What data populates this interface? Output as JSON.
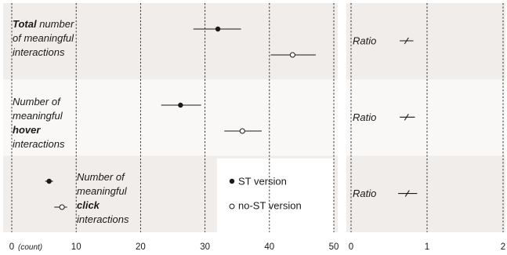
{
  "chart_data": [
    {
      "type": "scatter",
      "subtype": "dot-with-confidence-interval",
      "xlabel": "(count)",
      "xlim": [
        0,
        50
      ],
      "xticks": [
        0,
        10,
        20,
        30,
        40,
        50
      ],
      "grid": true,
      "legend": {
        "placement": "bottom-right",
        "entries": [
          {
            "name": "ST version",
            "marker": "filled-circle"
          },
          {
            "name": "no-ST version",
            "marker": "open-circle"
          }
        ]
      },
      "rows": [
        {
          "label_parts": [
            {
              "text": "Total",
              "bold": true
            },
            {
              "text": " number",
              "bold": false
            },
            {
              "text": "of meaningful",
              "bold": false,
              "newline": true
            },
            {
              "text": "interactions",
              "bold": false,
              "newline": true
            }
          ],
          "st": {
            "mean": 32,
            "ci": [
              28.2,
              35.6
            ]
          },
          "nost": {
            "mean": 43.6,
            "ci": [
              40.2,
              47.2
            ]
          }
        },
        {
          "label_parts": [
            {
              "text": "Number of",
              "bold": false
            },
            {
              "text": "meaningful",
              "bold": false,
              "newline": true
            },
            {
              "text": "hover",
              "bold": true,
              "newline": true
            },
            {
              "text": "interactions",
              "bold": false,
              "newline": true
            }
          ],
          "st": {
            "mean": 26.2,
            "ci": [
              23.2,
              29.4
            ]
          },
          "nost": {
            "mean": 35.8,
            "ci": [
              33.0,
              38.8
            ]
          }
        },
        {
          "label_parts": [
            {
              "text": "Number of",
              "bold": false
            },
            {
              "text": "meaningful",
              "bold": false,
              "newline": true
            },
            {
              "text": "click",
              "bold": true,
              "newline": true
            },
            {
              "text": "interactions",
              "bold": false,
              "newline": true
            }
          ],
          "st": {
            "mean": 5.8,
            "ci": [
              5.2,
              6.4
            ]
          },
          "nost": {
            "mean": 7.8,
            "ci": [
              6.6,
              8.6
            ]
          }
        }
      ]
    },
    {
      "type": "scatter",
      "subtype": "ratio-with-confidence-interval",
      "xlim": [
        0,
        2
      ],
      "xticks": [
        0,
        1,
        2
      ],
      "grid": true,
      "row_label": "Ratio",
      "rows": [
        {
          "ratio": 0.73,
          "ci": [
            0.64,
            0.82
          ]
        },
        {
          "ratio": 0.73,
          "ci": [
            0.64,
            0.84
          ]
        },
        {
          "ratio": 0.74,
          "ci": [
            0.62,
            0.87
          ]
        }
      ]
    }
  ],
  "colors": {
    "band_dark": "#f1edea",
    "band_light": "#f9f8f6",
    "ink": "#1a1a1a",
    "legend_bg": "#ffffff"
  }
}
